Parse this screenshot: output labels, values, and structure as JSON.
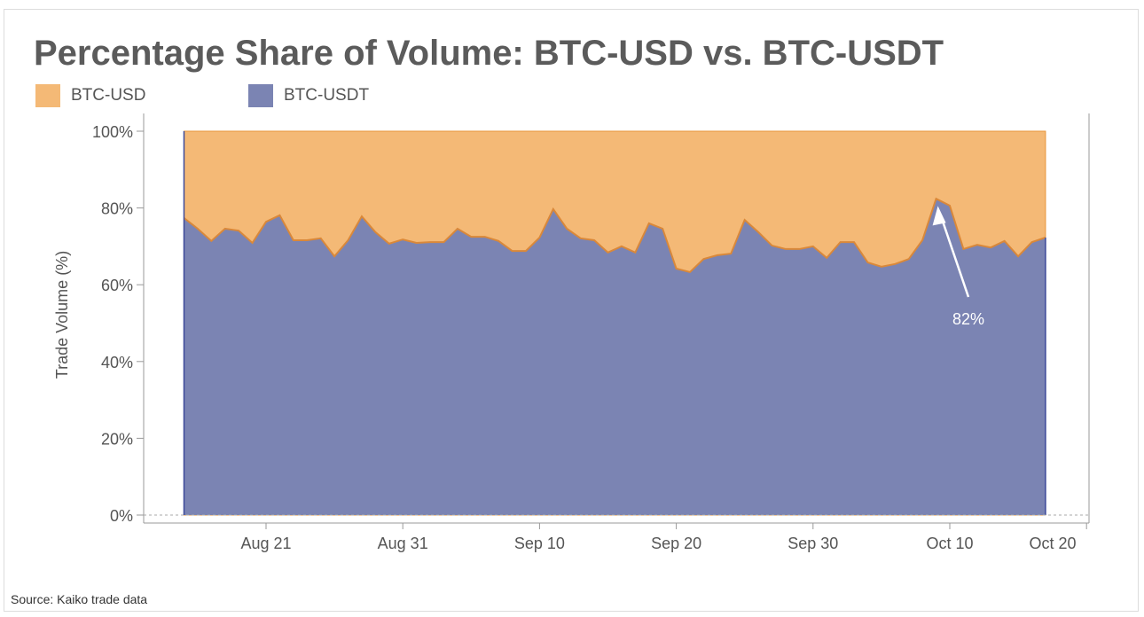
{
  "chart_data": {
    "type": "area",
    "stacked": "percent",
    "title": "Percentage Share of Volume: BTC-USD vs. BTC-USDT",
    "ylabel": "Trade Volume (%)",
    "xlabel": "",
    "ylim": [
      0,
      100
    ],
    "yticks": [
      "0%",
      "20%",
      "40%",
      "60%",
      "80%",
      "100%"
    ],
    "xticks": [
      {
        "date": "2023-08-21",
        "label": "Aug 21"
      },
      {
        "date": "2023-08-31",
        "label": "Aug 31"
      },
      {
        "date": "2023-09-10",
        "label": "Sep 10"
      },
      {
        "date": "2023-09-20",
        "label": "Sep 20"
      },
      {
        "date": "2023-09-30",
        "label": "Sep 30"
      },
      {
        "date": "2023-10-10",
        "label": "Oct 10"
      },
      {
        "date": "2023-10-20",
        "label": "Oct 20"
      }
    ],
    "legend": "top-left",
    "x_start": "2023-08-15",
    "x_end": "2023-10-17",
    "series": [
      {
        "name": "BTC-USD",
        "color": "#f4b976",
        "note": "remainder to 100%"
      },
      {
        "name": "BTC-USDT",
        "color": "#7b84b3",
        "values": [
          77.4,
          74.6,
          71.4,
          74.6,
          74.1,
          70.9,
          76.4,
          78.1,
          71.6,
          71.6,
          72.1,
          67.4,
          71.6,
          77.8,
          73.7,
          70.7,
          71.8,
          70.9,
          71.1,
          71.1,
          74.6,
          72.5,
          72.5,
          71.4,
          68.8,
          68.8,
          72.3,
          79.7,
          74.6,
          72.1,
          71.6,
          68.4,
          70.0,
          68.4,
          76.0,
          74.6,
          64.2,
          63.3,
          66.7,
          67.7,
          68.1,
          76.9,
          73.7,
          70.2,
          69.3,
          69.3,
          70.0,
          67.0,
          71.1,
          71.1,
          65.8,
          64.7,
          65.4,
          66.7,
          71.6,
          82.4,
          80.6,
          69.3,
          70.4,
          69.7,
          71.4,
          67.4,
          71.1,
          72.3
        ]
      }
    ],
    "annotation": {
      "date": "2023-10-09",
      "label": "82%"
    }
  },
  "source": "Source: Kaiko trade data"
}
